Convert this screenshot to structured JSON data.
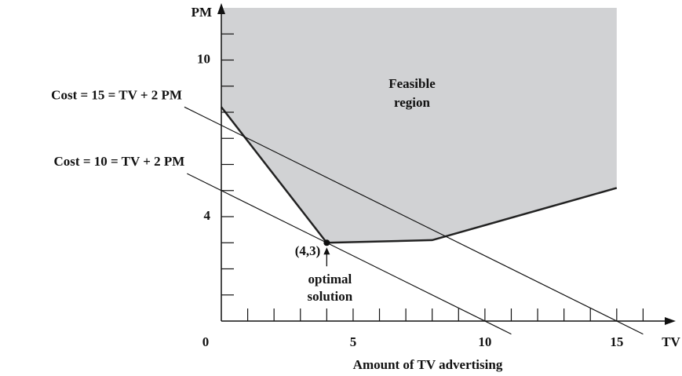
{
  "chart_data": {
    "type": "line",
    "xlabel": "TV",
    "ylabel": "PM",
    "axis_title": "Amount of TV advertising",
    "xlim": [
      0,
      17
    ],
    "ylim": [
      0,
      12
    ],
    "xticks": [
      0,
      5,
      10,
      15
    ],
    "yticks": [
      4,
      10
    ],
    "xticks_minor": [
      1,
      2,
      3,
      4,
      6,
      7,
      8,
      9,
      11,
      12,
      13,
      14,
      16
    ],
    "yticks_minor": [
      1,
      2,
      3,
      5,
      6,
      7,
      8,
      9,
      11
    ],
    "region": {
      "label": [
        "Feasible",
        "region"
      ],
      "color": "#d1d2d4",
      "x": [
        0,
        4,
        8,
        15
      ],
      "values": [
        8.2,
        3,
        3.1,
        5.1
      ]
    },
    "series": [
      {
        "name": "Cost = 15 = TV + 2 PM",
        "color": "#111111",
        "x": [
          -1.4,
          16
        ],
        "values": [
          8.2,
          -0.5
        ]
      },
      {
        "name": "Cost = 10 = TV + 2 PM",
        "color": "#111111",
        "x": [
          -1.3,
          11
        ],
        "values": [
          5.65,
          -0.5
        ]
      }
    ],
    "optimal_point": {
      "x": 4,
      "y": 3,
      "label": "(4,3)",
      "note": [
        "optimal",
        "solution"
      ]
    }
  }
}
